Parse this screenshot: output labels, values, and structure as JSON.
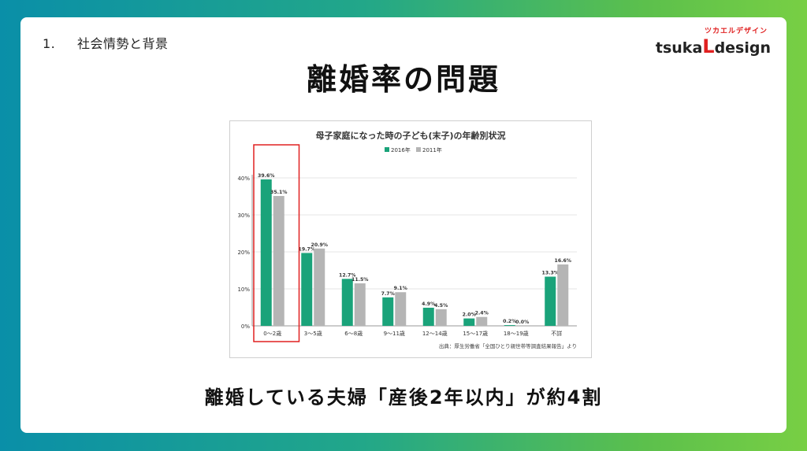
{
  "header": {
    "section_number": "1.",
    "section_title": "社会情勢と背景",
    "logo_kana": "ツカエルデザイン",
    "logo_pre": "tsuka",
    "logo_letter": "L",
    "logo_post": "design"
  },
  "title": "離婚率の問題",
  "subtitle": "離婚している夫婦「産後2年以内」が約4割",
  "chart_data": {
    "type": "bar",
    "title": "母子家庭になった時の子ども(末子)の年齢別状況",
    "categories": [
      "0〜2歳",
      "3〜5歳",
      "6〜8歳",
      "9〜11歳",
      "12〜14歳",
      "15〜17歳",
      "18〜19歳",
      "不詳"
    ],
    "series": [
      {
        "name": "2016年",
        "color": "#1aa37a",
        "values": [
          39.6,
          19.7,
          12.7,
          7.7,
          4.9,
          2.0,
          0.2,
          13.3
        ],
        "labels": [
          "39.6%",
          "19.7%",
          "12.7%",
          "7.7%",
          "4.9%",
          "2.0%",
          "0.2%",
          "13.3%"
        ]
      },
      {
        "name": "2011年",
        "color": "#b5b5b5",
        "values": [
          35.1,
          20.9,
          11.5,
          9.1,
          4.5,
          2.4,
          0.0,
          16.6
        ],
        "labels": [
          "35.1%",
          "20.9%",
          "11.5%",
          "9.1%",
          "4.5%",
          "2.4%",
          "0.0%",
          "16.6%"
        ]
      }
    ],
    "ylim": [
      0,
      40
    ],
    "yticks": [
      0,
      10,
      20,
      30,
      40
    ],
    "ytick_labels": [
      "0%",
      "10%",
      "20%",
      "30%",
      "40%"
    ],
    "grid": true,
    "legend": "top-center",
    "highlight_category": "0〜2歳",
    "highlight_color": "#e02020",
    "source": "出典：厚生労働省「全国ひとり親世帯等調査結果報告」より"
  }
}
